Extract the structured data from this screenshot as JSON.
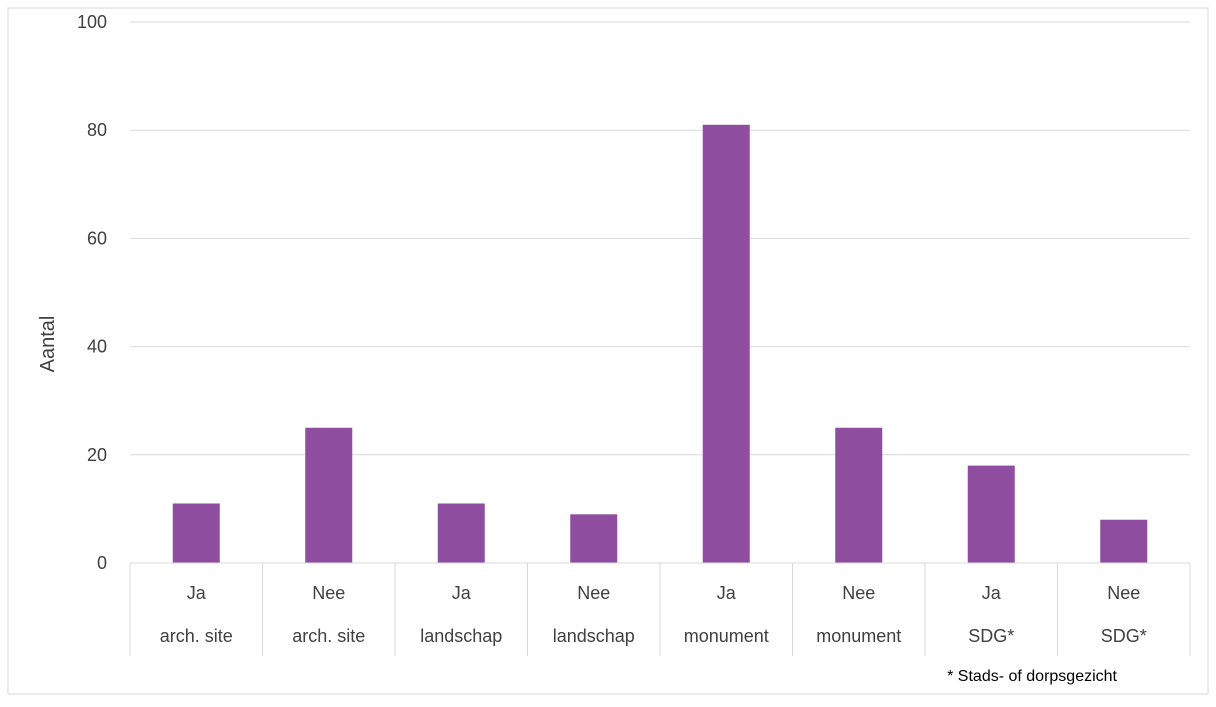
{
  "chart_data": {
    "type": "bar",
    "title": "",
    "ylabel": "Aantal",
    "xlabel": "",
    "ylim": [
      0,
      100
    ],
    "yticks": [
      0,
      20,
      40,
      60,
      80,
      100
    ],
    "grid": true,
    "bar_color": "#8F4D9F",
    "categories": [
      {
        "top": "Ja",
        "bottom": "arch. site"
      },
      {
        "top": "Nee",
        "bottom": "arch. site"
      },
      {
        "top": "Ja",
        "bottom": "landschap"
      },
      {
        "top": "Nee",
        "bottom": "landschap"
      },
      {
        "top": "Ja",
        "bottom": "monument"
      },
      {
        "top": "Nee",
        "bottom": "monument"
      },
      {
        "top": "Ja",
        "bottom": "SDG*"
      },
      {
        "top": "Nee",
        "bottom": "SDG*"
      }
    ],
    "values": [
      11,
      25,
      11,
      9,
      81,
      25,
      18,
      8
    ],
    "footnote": "* Stads- of dorpsgezicht"
  }
}
